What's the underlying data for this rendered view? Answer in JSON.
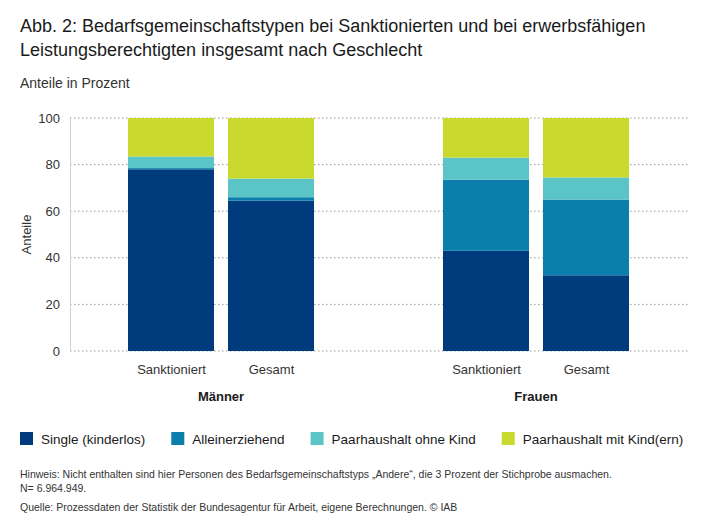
{
  "chart_data": {
    "type": "bar",
    "stacked": true,
    "grid": true,
    "title": "Abb. 2: Bedarfsgemeinschaftstypen bei Sanktionierten und bei erwerbsfähigen Leistungsberechtigten insgesamt nach Geschlecht",
    "subtitle": "Anteile in Prozent",
    "y_label": "Anteile",
    "categories": [
      "Sanktioniert",
      "Gesamt",
      "Sanktioniert",
      "Gesamt"
    ],
    "groups": [
      {
        "name": "Männer"
      },
      {
        "name": "Frauen"
      }
    ],
    "series": [
      {
        "name": "Single (kinderlos)",
        "color": "#003b7e",
        "values": [
          78,
          64.5,
          43,
          32.5
        ]
      },
      {
        "name": "Alleinerziehend",
        "color": "#0b7eab",
        "values": [
          0.5,
          1.5,
          30.5,
          32.5
        ]
      },
      {
        "name": "Paarhaushalt ohne Kind",
        "color": "#5bc4c6",
        "values": [
          5,
          8,
          9.5,
          9.5
        ]
      },
      {
        "name": "Paarhaushalt mit Kind(ern)",
        "color": "#c9d92e",
        "values": [
          16.5,
          26,
          17,
          25.5
        ]
      }
    ],
    "ylim": [
      0,
      100
    ],
    "yticks": [
      0,
      20,
      40,
      60,
      80,
      100
    ],
    "notes": [
      "Hinweis: Nicht enthalten sind hier Personen des Bedarfsgemeinschaftstyps „Andere“, die 3 Prozent der Stichprobe ausmachen.",
      "N= 6.964.949."
    ],
    "source": "Quelle: Prozessdaten der Statistik der Bundesagentur für Arbeit, eigene Berechnungen. © IAB"
  }
}
